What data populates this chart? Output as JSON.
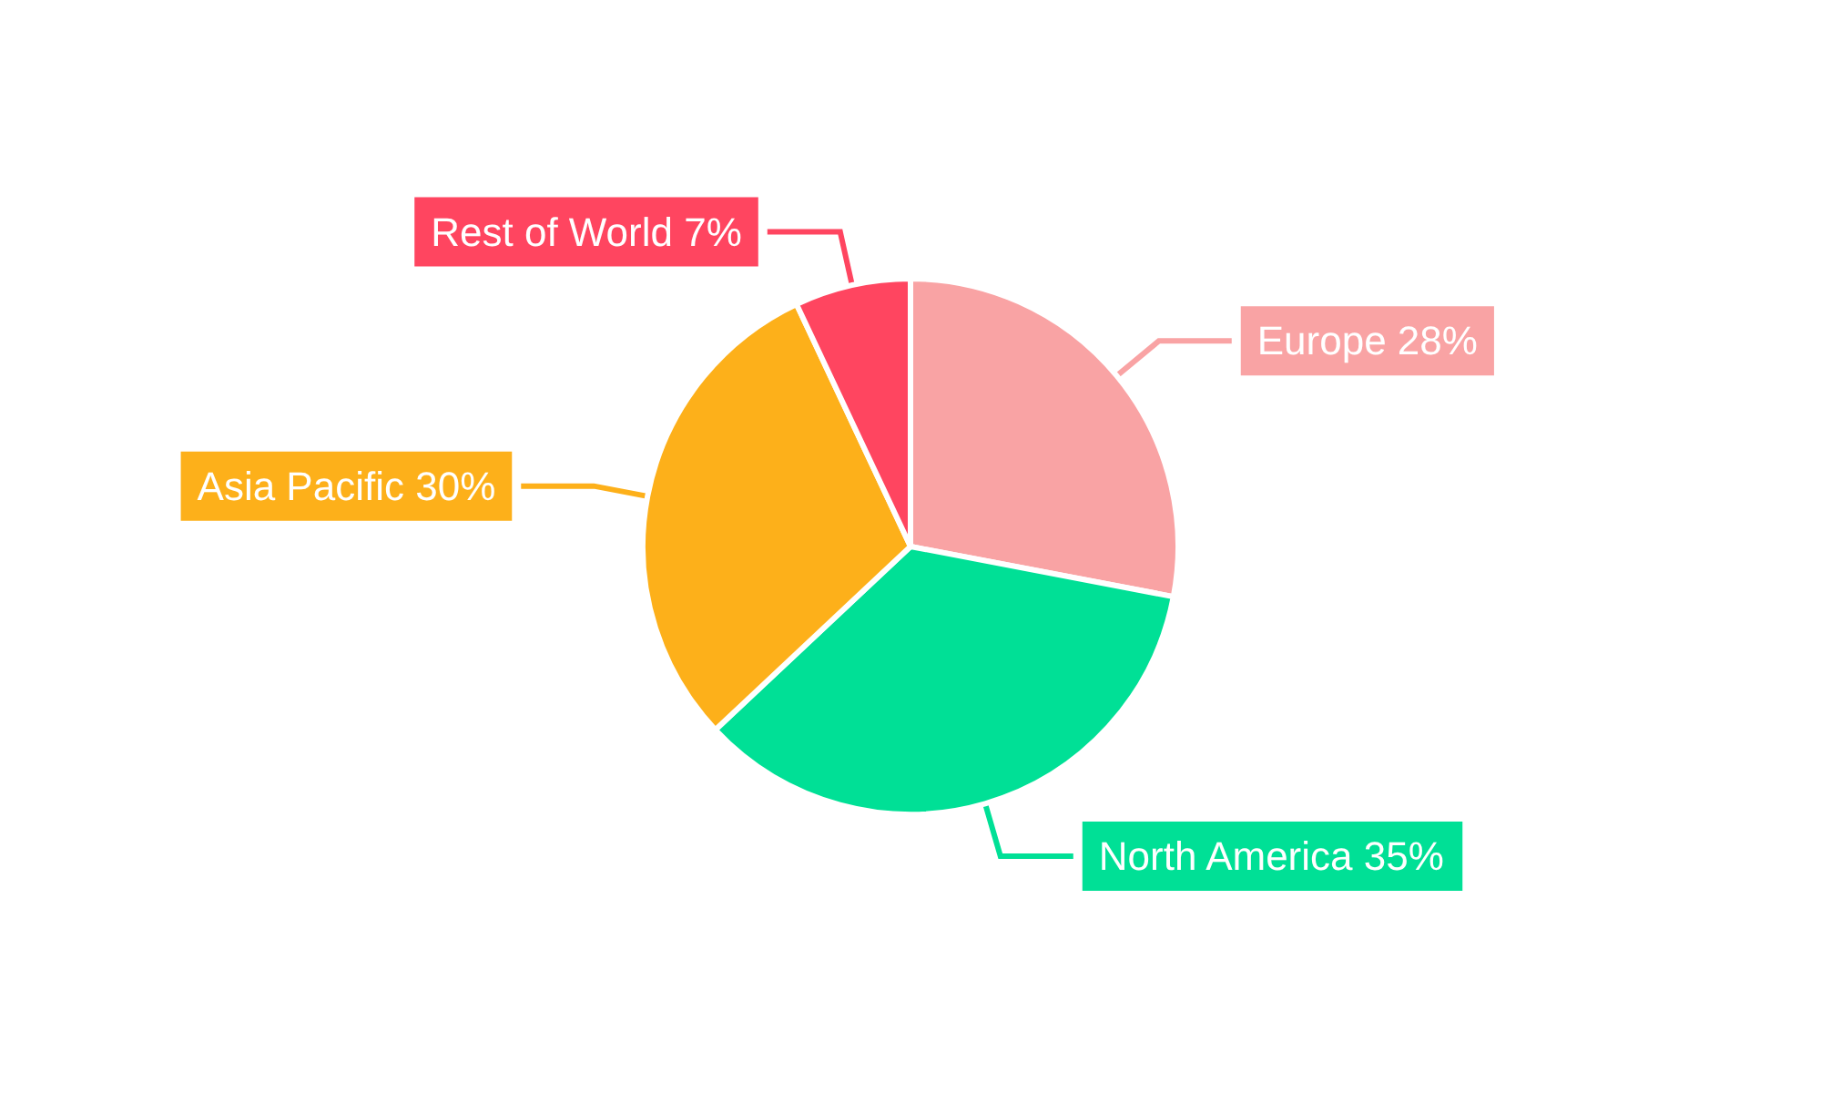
{
  "chart_data": {
    "type": "pie",
    "categories": [
      "Europe",
      "North America",
      "Asia Pacific",
      "Rest of World"
    ],
    "values": [
      28,
      35,
      30,
      7
    ],
    "value_labels": [
      "28%",
      "35%",
      "30%",
      "7%"
    ],
    "colors": [
      "#f9a3a4",
      "#00e096",
      "#fdb01a",
      "#ff4560"
    ],
    "legend": false
  }
}
